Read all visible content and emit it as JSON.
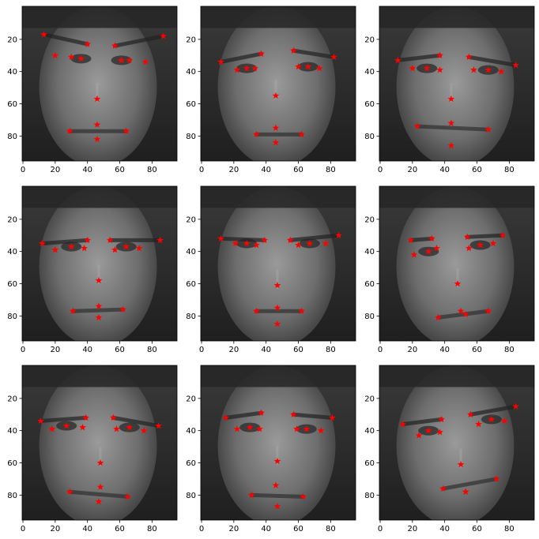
{
  "figure": {
    "rows": 3,
    "cols": 3,
    "marker": "star",
    "marker_color": "#ff0000",
    "image_colormap": "gray"
  },
  "chart_data": [
    {
      "type": "scatter",
      "title": "",
      "xlabel": "",
      "ylabel": "",
      "xlim": [
        -0.5,
        95.5
      ],
      "ylim": [
        95.5,
        -0.5
      ],
      "xticks": [
        0,
        20,
        40,
        60,
        80
      ],
      "yticks": [
        20,
        40,
        60,
        80
      ],
      "tick_labels_x": [
        "0",
        "20",
        "40",
        "60",
        "80"
      ],
      "tick_labels_y": [
        "20",
        "40",
        "60",
        "80"
      ],
      "background": "grayscale face photograph, man with glasses and mustache",
      "series": [
        {
          "x": [
            61,
            36,
            66,
            30,
            76,
            20,
            57,
            40,
            87,
            13,
            46,
            64,
            29,
            46,
            46
          ],
          "y": [
            33,
            32,
            33,
            31,
            34,
            30,
            24,
            23,
            18,
            17,
            57,
            77,
            77,
            73,
            82
          ]
        }
      ]
    },
    {
      "type": "scatter",
      "title": "",
      "xlabel": "",
      "ylabel": "",
      "xlim": [
        -0.5,
        95.5
      ],
      "ylim": [
        95.5,
        -0.5
      ],
      "xticks": [
        0,
        20,
        40,
        60,
        80
      ],
      "yticks": [
        20,
        40,
        60,
        80
      ],
      "tick_labels_x": [
        "0",
        "20",
        "40",
        "60",
        "80"
      ],
      "tick_labels_y": [
        "20",
        "40",
        "60",
        "80"
      ],
      "background": "grayscale face photograph, young man looking up",
      "series": [
        {
          "x": [
            66,
            28,
            60,
            33,
            73,
            22,
            57,
            37,
            82,
            12,
            46,
            62,
            34,
            46,
            46
          ],
          "y": [
            37,
            38,
            37,
            38,
            38,
            39,
            27,
            29,
            31,
            34,
            55,
            79,
            79,
            75,
            84
          ]
        }
      ]
    },
    {
      "type": "scatter",
      "title": "",
      "xlabel": "",
      "ylabel": "",
      "xlim": [
        -0.5,
        95.5
      ],
      "ylim": [
        95.5,
        -0.5
      ],
      "xticks": [
        0,
        20,
        40,
        60,
        80
      ],
      "yticks": [
        20,
        40,
        60,
        80
      ],
      "tick_labels_x": [
        "0",
        "20",
        "40",
        "60",
        "80"
      ],
      "tick_labels_y": [
        "20",
        "40",
        "60",
        "80"
      ],
      "background": "grayscale face photograph, smiling man",
      "series": [
        {
          "x": [
            67,
            29,
            58,
            37,
            75,
            20,
            55,
            37,
            84,
            11,
            44,
            67,
            23,
            44,
            44
          ],
          "y": [
            39,
            38,
            39,
            39,
            40,
            38,
            31,
            30,
            36,
            33,
            57,
            76,
            74,
            72,
            86
          ]
        }
      ]
    },
    {
      "type": "scatter",
      "title": "",
      "xlabel": "",
      "ylabel": "",
      "xlim": [
        -0.5,
        95.5
      ],
      "ylim": [
        95.5,
        -0.5
      ],
      "xticks": [
        0,
        20,
        40,
        60,
        80
      ],
      "yticks": [
        20,
        40,
        60,
        80
      ],
      "tick_labels_x": [
        "0",
        "20",
        "40",
        "60",
        "80"
      ],
      "tick_labels_y": [
        "20",
        "40",
        "60",
        "80"
      ],
      "background": "grayscale face photograph, man with glasses",
      "series": [
        {
          "x": [
            64,
            30,
            57,
            38,
            72,
            20,
            54,
            40,
            85,
            12,
            47,
            62,
            31,
            47,
            47
          ],
          "y": [
            37,
            37,
            39,
            38,
            38,
            39,
            33,
            33,
            33,
            35,
            58,
            76,
            77,
            74,
            81
          ]
        }
      ]
    },
    {
      "type": "scatter",
      "title": "",
      "xlabel": "",
      "ylabel": "",
      "xlim": [
        -0.5,
        95.5
      ],
      "ylim": [
        95.5,
        -0.5
      ],
      "xticks": [
        0,
        20,
        40,
        60,
        80
      ],
      "yticks": [
        20,
        40,
        60,
        80
      ],
      "tick_labels_x": [
        "0",
        "20",
        "40",
        "60",
        "80"
      ],
      "tick_labels_y": [
        "20",
        "40",
        "60",
        "80"
      ],
      "background": "grayscale face photograph, man with short hair",
      "series": [
        {
          "x": [
            67,
            28,
            60,
            34,
            77,
            21,
            55,
            39,
            85,
            12,
            47,
            62,
            34,
            47,
            47
          ],
          "y": [
            35,
            35,
            36,
            36,
            35,
            35,
            33,
            33,
            30,
            32,
            61,
            77,
            77,
            75,
            85
          ]
        }
      ]
    },
    {
      "type": "scatter",
      "title": "",
      "xlabel": "",
      "ylabel": "",
      "xlim": [
        -0.5,
        95.5
      ],
      "ylim": [
        95.5,
        -0.5
      ],
      "xticks": [
        0,
        20,
        40,
        60,
        80
      ],
      "yticks": [
        20,
        40,
        60,
        80
      ],
      "tick_labels_x": [
        "0",
        "20",
        "40",
        "60",
        "80"
      ],
      "tick_labels_y": [
        "20",
        "40",
        "60",
        "80"
      ],
      "background": "grayscale face photograph, man in suit",
      "series": [
        {
          "x": [
            62,
            30,
            55,
            35,
            70,
            21,
            54,
            32,
            76,
            19,
            48,
            67,
            36,
            50,
            53
          ],
          "y": [
            36,
            40,
            38,
            38,
            35,
            42,
            31,
            32,
            30,
            33,
            60,
            77,
            81,
            77,
            79
          ]
        }
      ]
    },
    {
      "type": "scatter",
      "title": "",
      "xlabel": "",
      "ylabel": "",
      "xlim": [
        -0.5,
        95.5
      ],
      "ylim": [
        95.5,
        -0.5
      ],
      "xticks": [
        0,
        20,
        40,
        60,
        80
      ],
      "yticks": [
        20,
        40,
        60,
        80
      ],
      "tick_labels_x": [
        "0",
        "20",
        "40",
        "60",
        "80"
      ],
      "tick_labels_y": [
        "20",
        "40",
        "60",
        "80"
      ],
      "background": "grayscale face photograph, man with glasses",
      "series": [
        {
          "x": [
            66,
            27,
            58,
            37,
            75,
            18,
            56,
            39,
            84,
            11,
            48,
            65,
            29,
            48,
            47
          ],
          "y": [
            38,
            37,
            39,
            38,
            40,
            39,
            32,
            32,
            37,
            34,
            60,
            81,
            78,
            75,
            84
          ]
        }
      ]
    },
    {
      "type": "scatter",
      "title": "",
      "xlabel": "",
      "ylabel": "",
      "xlim": [
        -0.5,
        95.5
      ],
      "ylim": [
        95.5,
        -0.5
      ],
      "xticks": [
        0,
        20,
        40,
        60,
        80
      ],
      "yticks": [
        20,
        40,
        60,
        80
      ],
      "tick_labels_x": [
        "0",
        "20",
        "40",
        "60",
        "80"
      ],
      "tick_labels_y": [
        "20",
        "40",
        "60",
        "80"
      ],
      "background": "grayscale face photograph, man with mustache",
      "series": [
        {
          "x": [
            65,
            30,
            59,
            36,
            74,
            22,
            57,
            37,
            81,
            15,
            47,
            63,
            31,
            46,
            47
          ],
          "y": [
            39,
            38,
            39,
            39,
            40,
            39,
            30,
            29,
            32,
            32,
            59,
            81,
            80,
            74,
            87
          ]
        }
      ]
    },
    {
      "type": "scatter",
      "title": "",
      "xlabel": "",
      "ylabel": "",
      "xlim": [
        -0.5,
        95.5
      ],
      "ylim": [
        95.5,
        -0.5
      ],
      "xticks": [
        0,
        20,
        40,
        60,
        80
      ],
      "yticks": [
        20,
        40,
        60,
        80
      ],
      "tick_labels_x": [
        "0",
        "20",
        "40",
        "60",
        "80"
      ],
      "tick_labels_y": [
        "20",
        "40",
        "60",
        "80"
      ],
      "background": "grayscale face photograph, smiling woman with long hair",
      "series": [
        {
          "x": [
            69,
            30,
            61,
            37,
            77,
            24,
            56,
            38,
            84,
            14,
            50,
            72,
            39,
            53,
            53
          ],
          "y": [
            33,
            40,
            36,
            41,
            34,
            43,
            30,
            33,
            25,
            36,
            61,
            70,
            76,
            78,
            78
          ]
        }
      ]
    }
  ]
}
